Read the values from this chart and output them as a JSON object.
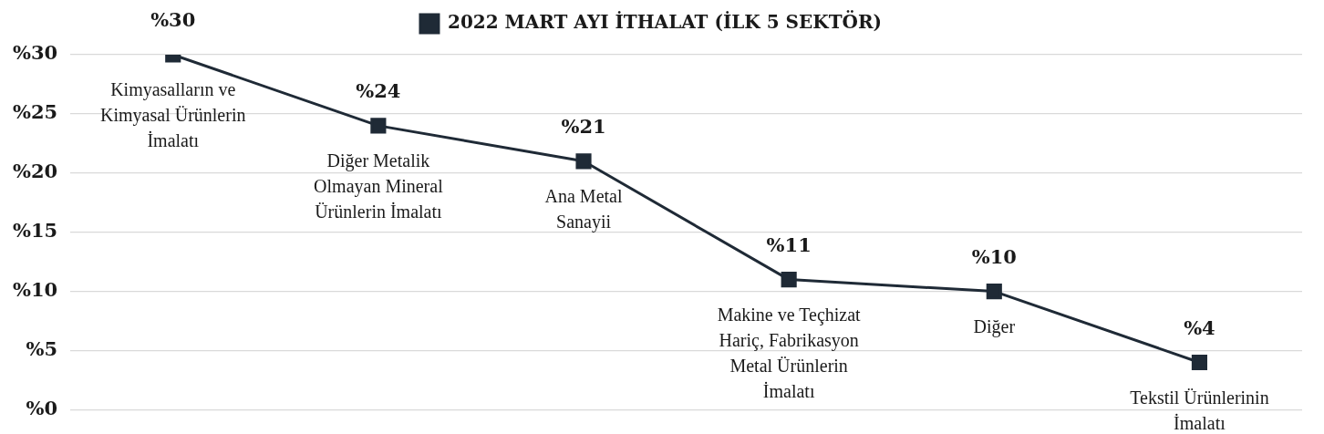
{
  "chart_data": {
    "type": "line",
    "categories": [
      "Kimyasalların ve Kimyasal Ürünlerin İmalatı",
      "Diğer Metalik Olmayan Mineral Ürünlerin İmalatı",
      "Ana Metal Sanayii",
      "Makine ve Teçhizat Hariç, Fabrikasyon Metal Ürünlerin İmalatı",
      "Diğer",
      "Tekstil Ürünlerinin İmalatı"
    ],
    "series": [
      {
        "name": "2022 MART AYI İTHALAT (İLK 5 SEKTÖR)",
        "color": "#1f2a36",
        "values": [
          30,
          24,
          21,
          11,
          10,
          4
        ],
        "value_labels": [
          "%30",
          "%24",
          "%21",
          "%11",
          "%10",
          "%4"
        ]
      }
    ],
    "ylim": [
      0,
      30
    ],
    "yticks": [
      {
        "value": 0,
        "label": "%0"
      },
      {
        "value": 5,
        "label": "%5"
      },
      {
        "value": 10,
        "label": "%10"
      },
      {
        "value": 15,
        "label": "%15"
      },
      {
        "value": 20,
        "label": "%20"
      },
      {
        "value": 25,
        "label": "%25"
      },
      {
        "value": 30,
        "label": "%30"
      }
    ],
    "grid": "y",
    "legend": "top",
    "marker": "square",
    "line_style": "solid",
    "tick_labels": "y"
  }
}
